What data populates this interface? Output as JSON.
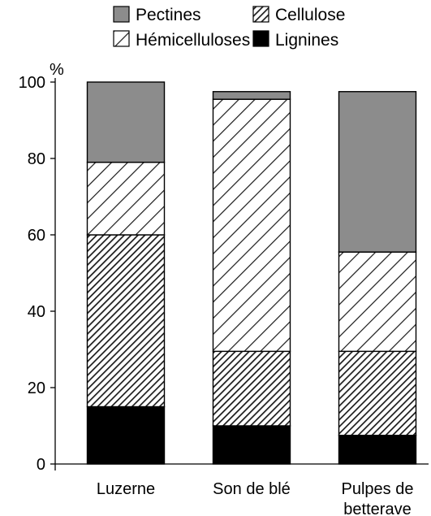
{
  "chart_data": {
    "type": "bar",
    "stacked": true,
    "title": "",
    "xlabel": "",
    "ylabel": "%",
    "ylim": [
      0,
      100
    ],
    "yticks": [
      "0",
      "20",
      "40",
      "60",
      "80",
      "100"
    ],
    "categories": [
      [
        "Luzerne"
      ],
      [
        "Son de blé"
      ],
      [
        "Pulpes de",
        "betterave"
      ]
    ],
    "series": [
      {
        "name": "Lignines",
        "pattern": "solid-black",
        "values": [
          15,
          10,
          7.5
        ]
      },
      {
        "name": "Cellulose",
        "pattern": "dense-hatch",
        "values": [
          45,
          19.5,
          22
        ]
      },
      {
        "name": "Hémicelluloses",
        "pattern": "sparse-hatch",
        "values": [
          19,
          66,
          26
        ]
      },
      {
        "name": "Pectines",
        "pattern": "solid-gray",
        "values": [
          21,
          2,
          42
        ]
      }
    ],
    "legend": {
      "placement": "top",
      "order": [
        "Pectines",
        "Cellulose",
        "Hémicelluloses",
        "Lignines"
      ]
    },
    "grid": false,
    "colors": {
      "bar_fill": "#000000",
      "solid_gray": "#8c8c8c",
      "hatch": "#1a1a1a",
      "background": "#ffffff"
    }
  }
}
